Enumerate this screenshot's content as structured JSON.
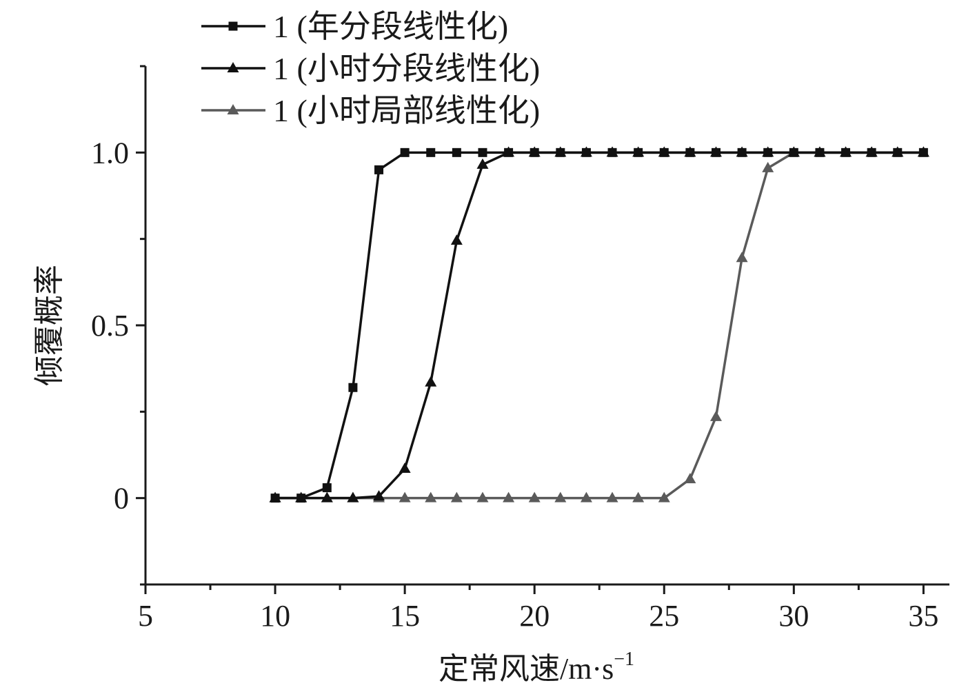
{
  "chart_data": {
    "type": "line",
    "title": "",
    "xlabel": "定常风速/m·s",
    "xlabel_sup": "−1",
    "ylabel": "倾覆概率",
    "xlim": [
      5,
      36
    ],
    "ylim": [
      -0.25,
      1.25
    ],
    "x_ticks": [
      5,
      10,
      15,
      20,
      25,
      30,
      35
    ],
    "y_ticks": [
      0,
      0.5,
      1.0
    ],
    "y_tick_labels": [
      "0",
      "0.5",
      "1.0"
    ],
    "grid": false,
    "legend_position": "top-left",
    "x": [
      10,
      11,
      12,
      13,
      14,
      15,
      16,
      17,
      18,
      19,
      20,
      21,
      22,
      23,
      24,
      25,
      26,
      27,
      28,
      29,
      30,
      31,
      32,
      33,
      34,
      35
    ],
    "series": [
      {
        "name": "1 (年分段线性化)",
        "marker": "square",
        "color": "#111111",
        "values": [
          0,
          0,
          0.03,
          0.32,
          0.95,
          1,
          1,
          1,
          1,
          1,
          1,
          1,
          1,
          1,
          1,
          1,
          1,
          1,
          1,
          1,
          1,
          1,
          1,
          1,
          1,
          1
        ]
      },
      {
        "name": "1 (小时分段线性化)",
        "marker": "triangle",
        "color": "#111111",
        "values": [
          0,
          0,
          0,
          0,
          0.005,
          0.085,
          0.335,
          0.745,
          0.965,
          1,
          1,
          1,
          1,
          1,
          1,
          1,
          1,
          1,
          1,
          1,
          1,
          1,
          1,
          1,
          1,
          1
        ]
      },
      {
        "name": "1 (小时局部线性化)",
        "marker": "triangle",
        "color": "#5a5a5a",
        "values": [
          0,
          0,
          0,
          0,
          0,
          0,
          0,
          0,
          0,
          0,
          0,
          0,
          0,
          0,
          0,
          0,
          0.055,
          0.235,
          0.695,
          0.955,
          1,
          1,
          1,
          1,
          1,
          1
        ]
      }
    ]
  }
}
